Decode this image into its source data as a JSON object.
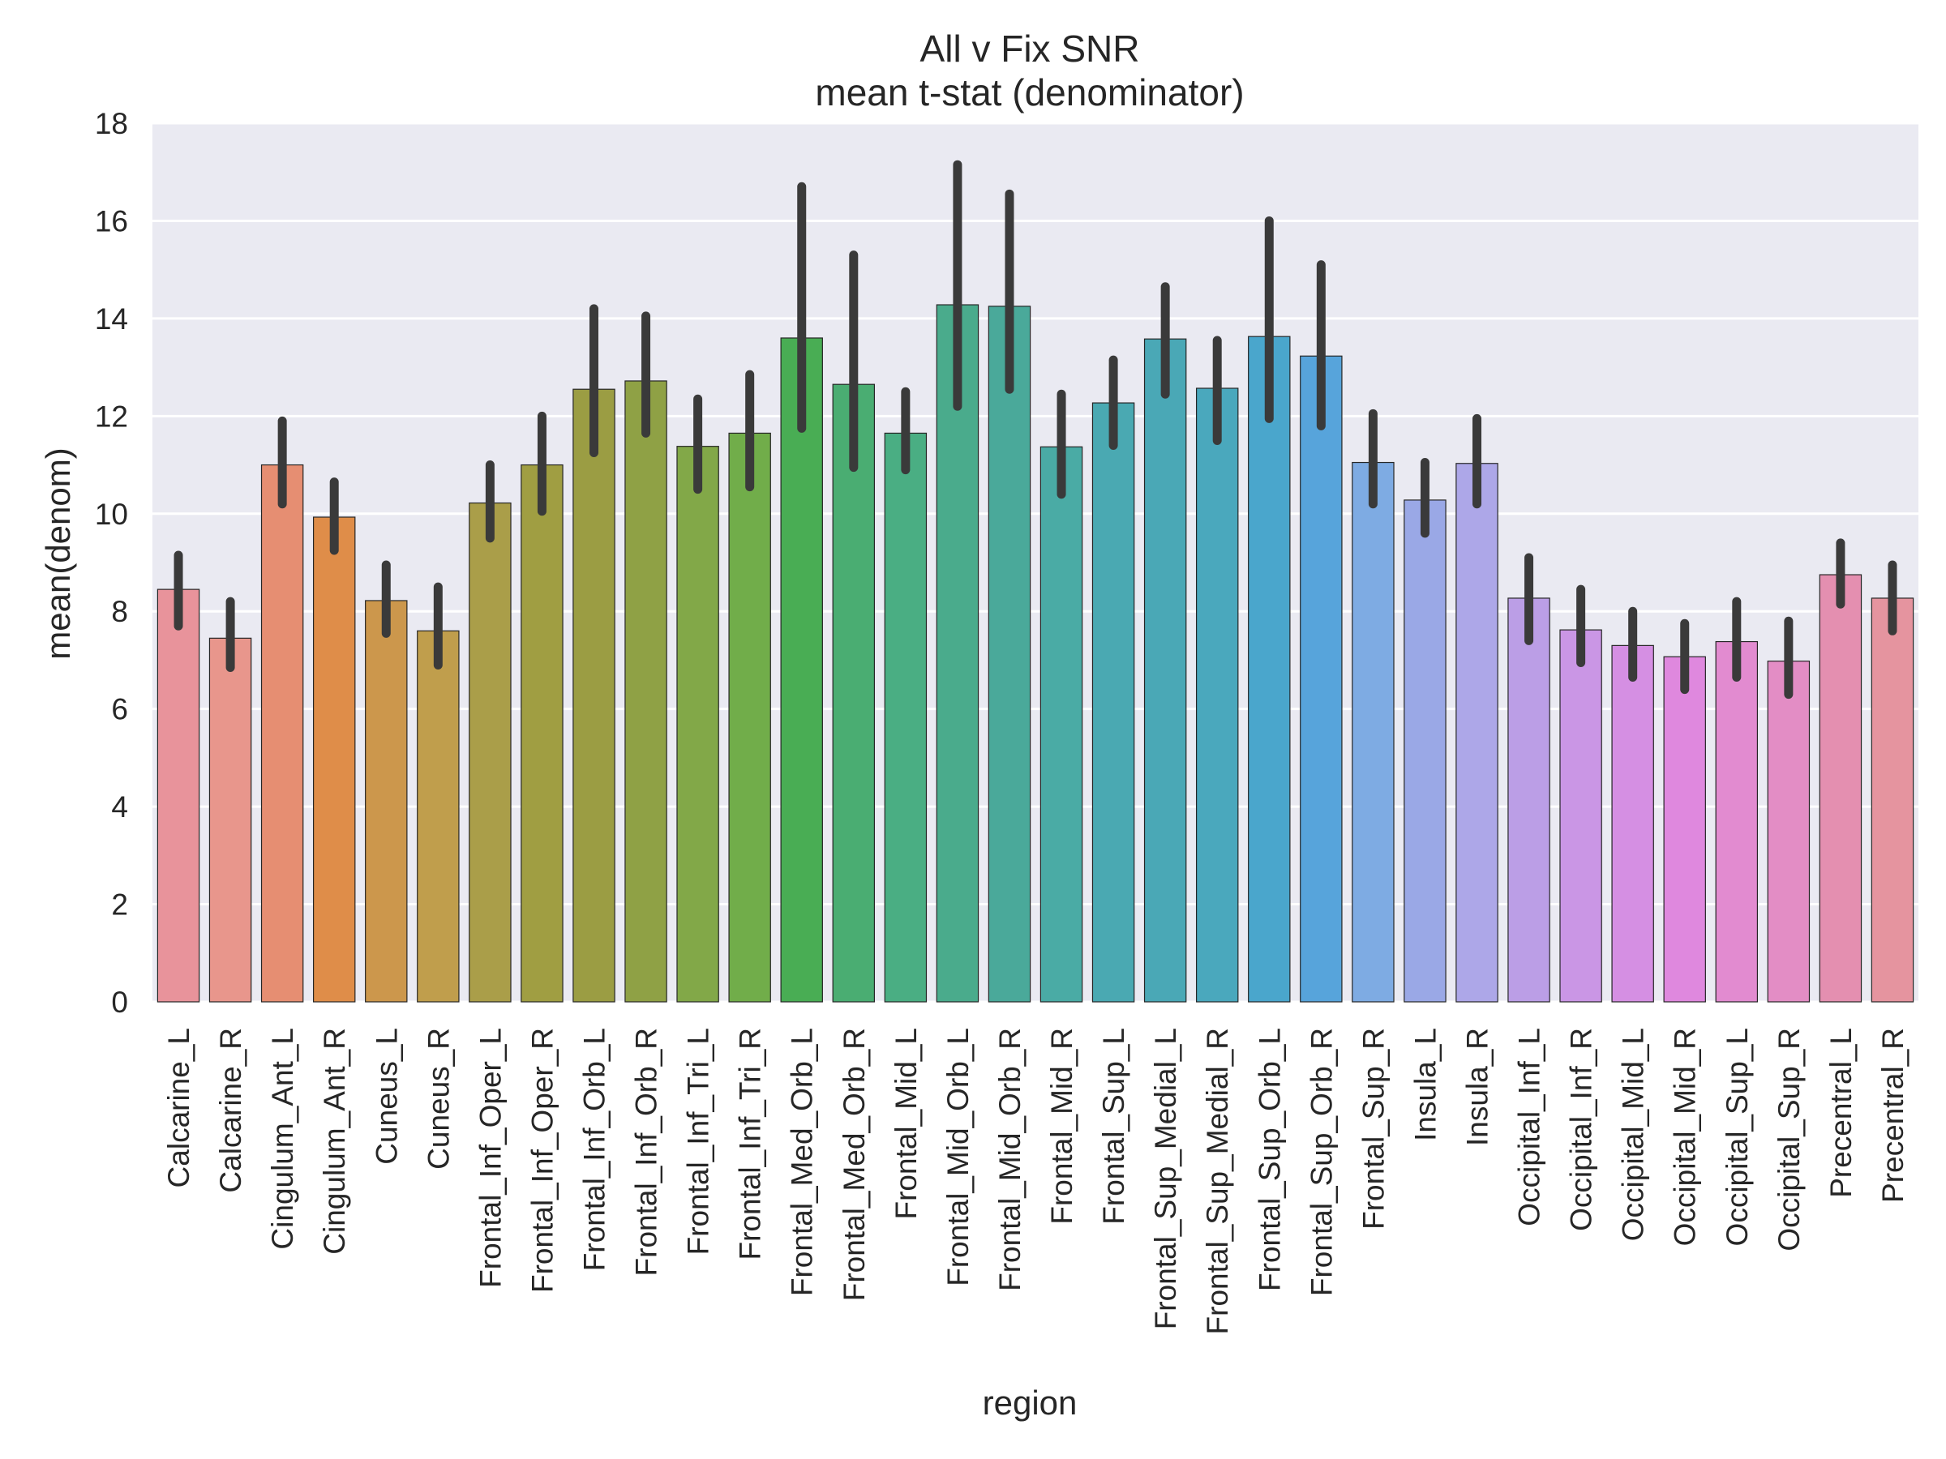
{
  "chart_data": {
    "type": "bar",
    "title": "All v Fix SNR",
    "subtitle": "mean t-stat (denominator)",
    "xlabel": "region",
    "ylabel": "mean(denom)",
    "ylim": [
      0,
      18
    ],
    "yticks": [
      "0",
      "2",
      "4",
      "6",
      "8",
      "10",
      "12",
      "14",
      "16",
      "18"
    ],
    "grid": true,
    "legend": "none",
    "background_color": "#eaeaf2",
    "error_bar_color": "#3a3a3a",
    "categories": [
      "Calcarine_L",
      "Calcarine_R",
      "Cingulum_Ant_L",
      "Cingulum_Ant_R",
      "Cuneus_L",
      "Cuneus_R",
      "Frontal_Inf_Oper_L",
      "Frontal_Inf_Oper_R",
      "Frontal_Inf_Orb_L",
      "Frontal_Inf_Orb_R",
      "Frontal_Inf_Tri_L",
      "Frontal_Inf_Tri_R",
      "Frontal_Med_Orb_L",
      "Frontal_Med_Orb_R",
      "Frontal_Mid_L",
      "Frontal_Mid_Orb_L",
      "Frontal_Mid_Orb_R",
      "Frontal_Mid_R",
      "Frontal_Sup_L",
      "Frontal_Sup_Medial_L",
      "Frontal_Sup_Medial_R",
      "Frontal_Sup_Orb_L",
      "Frontal_Sup_Orb_R",
      "Frontal_Sup_R",
      "Insula_L",
      "Insula_R",
      "Occipital_Inf_L",
      "Occipital_Inf_R",
      "Occipital_Mid_L",
      "Occipital_Mid_R",
      "Occipital_Sup_L",
      "Occipital_Sup_R",
      "Precentral_L",
      "Precentral_R"
    ],
    "values": [
      8.45,
      7.45,
      11.0,
      9.93,
      8.22,
      7.6,
      10.22,
      11.0,
      12.55,
      12.72,
      11.38,
      11.65,
      13.6,
      12.65,
      11.65,
      14.28,
      14.25,
      11.37,
      12.27,
      13.58,
      12.57,
      13.63,
      13.23,
      11.05,
      10.28,
      11.03,
      8.27,
      7.62,
      7.3,
      7.07,
      7.38,
      6.98,
      8.75,
      8.27
    ],
    "ci_low": [
      7.7,
      6.85,
      10.2,
      9.25,
      7.55,
      6.9,
      9.5,
      10.05,
      11.25,
      11.65,
      10.5,
      10.55,
      11.75,
      10.95,
      10.9,
      12.2,
      12.55,
      10.4,
      11.4,
      12.45,
      11.5,
      11.95,
      11.8,
      10.2,
      9.6,
      10.2,
      7.4,
      6.95,
      6.65,
      6.4,
      6.65,
      6.3,
      8.15,
      7.6
    ],
    "ci_high": [
      9.15,
      8.2,
      11.9,
      10.65,
      8.95,
      8.5,
      11.0,
      12.0,
      14.2,
      14.05,
      12.35,
      12.85,
      16.7,
      15.3,
      12.5,
      17.15,
      16.55,
      12.45,
      13.15,
      14.65,
      13.55,
      16.0,
      15.1,
      12.05,
      11.05,
      11.95,
      9.1,
      8.45,
      8.0,
      7.75,
      8.2,
      7.8,
      9.4,
      8.95
    ],
    "colors": [
      "#e8939b",
      "#e8968c",
      "#e68e72",
      "#df8d49",
      "#cc974c",
      "#c09e4c",
      "#aa9e49",
      "#a09e42",
      "#9b9d43",
      "#8fa145",
      "#82a848",
      "#71ad4a",
      "#49ad54",
      "#4aad72",
      "#4aae83",
      "#4aab8c",
      "#4aa99a",
      "#4aaba5",
      "#4aa9b2",
      "#4aa8b6",
      "#4aa8bd",
      "#4aa6cc",
      "#57a4db",
      "#7eabe3",
      "#9aa8e6",
      "#ada7e8",
      "#bb9ee6",
      "#ca96e5",
      "#d58fe3",
      "#df88de",
      "#e28bd0",
      "#e38dc5",
      "#e48fb0",
      "#e5949f"
    ]
  }
}
